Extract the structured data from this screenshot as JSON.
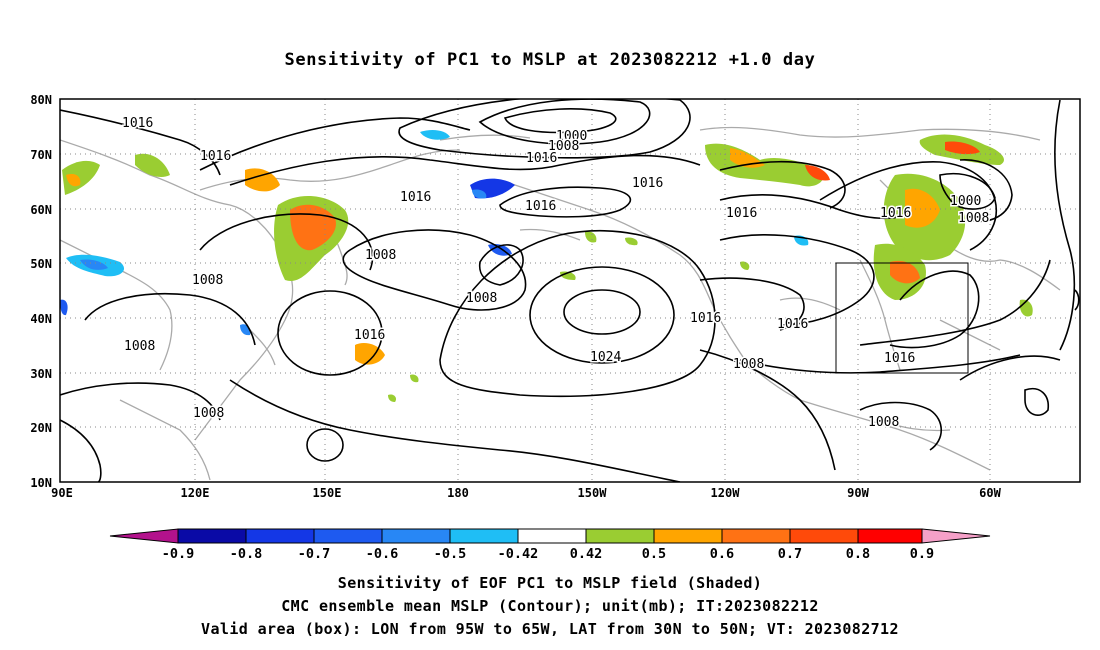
{
  "title": "Sensitivity of PC1 to MSLP at 2023082212 +1.0 day",
  "lat_labels": [
    "80N",
    "70N",
    "60N",
    "50N",
    "40N",
    "30N",
    "20N",
    "10N"
  ],
  "lon_labels": [
    "90E",
    "120E",
    "150E",
    "180",
    "150W",
    "120W",
    "90W",
    "60W"
  ],
  "contour_labels": [
    {
      "text": "1016"
    },
    {
      "text": "1016"
    },
    {
      "text": "1000"
    },
    {
      "text": "1008"
    },
    {
      "text": "1016"
    },
    {
      "text": "1016"
    },
    {
      "text": "1016"
    },
    {
      "text": "1016"
    },
    {
      "text": "1016"
    },
    {
      "text": "1000"
    },
    {
      "text": "1016"
    },
    {
      "text": "1008"
    },
    {
      "text": "1008"
    },
    {
      "text": "1008"
    },
    {
      "text": "1016"
    },
    {
      "text": "1008"
    },
    {
      "text": "1024"
    },
    {
      "text": "1016"
    },
    {
      "text": "1016"
    },
    {
      "text": "1008"
    },
    {
      "text": "1016"
    },
    {
      "text": "1008"
    },
    {
      "text": "1008"
    },
    {
      "text": "1008"
    }
  ],
  "colorbar": {
    "labels": [
      "-0.9",
      "-0.8",
      "-0.7",
      "-0.6",
      "-0.5",
      "-0.42",
      "0.42",
      "0.5",
      "0.6",
      "0.7",
      "0.8",
      "0.9"
    ],
    "colors": [
      "#b3128c",
      "#0a0aa6",
      "#1437e6",
      "#1e5af0",
      "#2887f5",
      "#1fbef5",
      "#ffffff",
      "#9acd32",
      "#ffa500",
      "#ff7214",
      "#ff4a0a",
      "#ff0000",
      "#f5a0c8"
    ]
  },
  "valid_box": {
    "lon": [
      "95W",
      "65W"
    ],
    "lat": [
      "30N",
      "50N"
    ]
  },
  "captions": {
    "line1": "Sensitivity of EOF PC1 to MSLP field (Shaded)",
    "line2": "CMC ensemble mean MSLP (Contour); unit(mb); IT:2023082212",
    "line3": "Valid area (box): LON from 95W to 65W, LAT from 30N to 50N; VT: 2023082712"
  }
}
